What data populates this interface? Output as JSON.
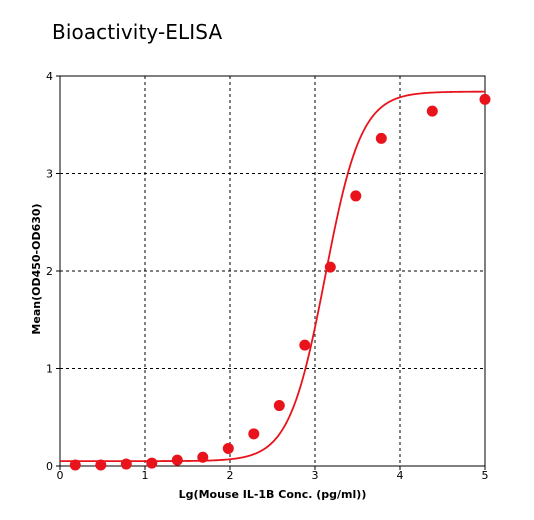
{
  "title": "Bioactivity-ELISA",
  "colors": {
    "series": "#e8131b",
    "grid": "#000000",
    "axis": "#000000",
    "background": "#ffffff"
  },
  "chart_data": {
    "type": "scatter",
    "title": "Bioactivity-ELISA",
    "xlabel": "Lg(Mouse IL-1B Conc. (pg/ml))",
    "ylabel": "Mean(OD450-OD630)",
    "xlim": [
      0,
      5
    ],
    "ylim": [
      0,
      4
    ],
    "xticks": [
      0,
      1,
      2,
      3,
      4,
      5
    ],
    "yticks": [
      0,
      1,
      2,
      3,
      4
    ],
    "grid": true,
    "grid_style": "dashed",
    "legend": "none",
    "series": [
      {
        "x": [
          0.18,
          0.48,
          0.78,
          1.08,
          1.38,
          1.68,
          1.98,
          2.28,
          2.58,
          2.88,
          3.18,
          3.48,
          3.78,
          4.38,
          5.0
        ],
        "y": [
          0.01,
          0.01,
          0.02,
          0.03,
          0.06,
          0.09,
          0.18,
          0.33,
          0.62,
          1.24,
          2.04,
          2.77,
          3.36,
          3.64,
          3.76
        ]
      }
    ],
    "fit_curve": {
      "type": "4PL",
      "bottom": 0.05,
      "top": 3.84,
      "ec50_log": 3.12,
      "hill": 2.05
    }
  }
}
